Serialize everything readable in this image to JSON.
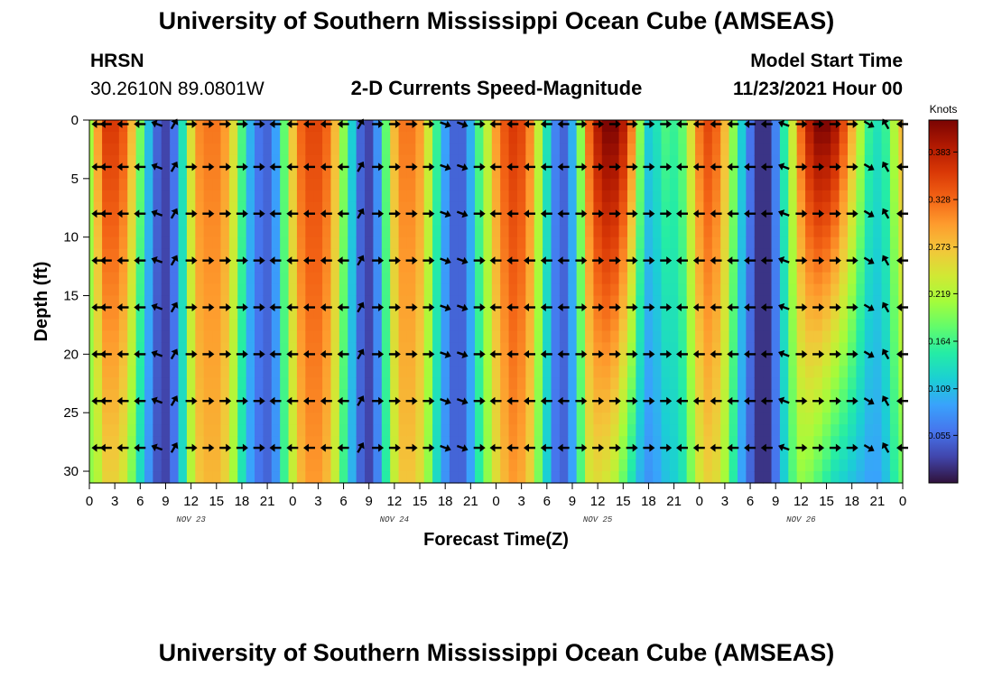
{
  "header": {
    "title": "University of Southern Mississippi Ocean Cube (AMSEAS)",
    "station": "HRSN",
    "coords": "30.2610N  89.0801W",
    "subtitle": "2-D Currents Speed-Magnitude",
    "model_label": "Model Start Time",
    "model_date": "11/23/2021 Hour 00"
  },
  "footer": {
    "title": "University of Southern Mississippi Ocean Cube (AMSEAS)"
  },
  "chart_data": {
    "type": "heatmap",
    "title": "2-D Currents Speed-Magnitude",
    "xlabel": "Forecast Time(Z)",
    "ylabel": "Depth (ft)",
    "xlim": [
      0,
      96
    ],
    "ylim": [
      31,
      0
    ],
    "x_ticks": [
      "0",
      "3",
      "6",
      "9",
      "12",
      "15",
      "18",
      "21",
      "0",
      "3",
      "6",
      "9",
      "12",
      "15",
      "18",
      "21",
      "0",
      "3",
      "6",
      "9",
      "12",
      "15",
      "18",
      "21",
      "0",
      "3",
      "6",
      "9",
      "12",
      "15",
      "18",
      "21",
      "0"
    ],
    "y_ticks": [
      0,
      5,
      10,
      15,
      20,
      25,
      30
    ],
    "day_labels": [
      {
        "label": "NOV 23",
        "hour": 12
      },
      {
        "label": "NOV 24",
        "hour": 36
      },
      {
        "label": "NOV 25",
        "hour": 60
      },
      {
        "label": "NOV 26",
        "hour": 84
      }
    ],
    "colorbar": {
      "unit": "Knots",
      "ticks": [
        0.055,
        0.109,
        0.164,
        0.219,
        0.273,
        0.328,
        0.383
      ],
      "range": [
        0.0,
        0.42
      ],
      "colors": [
        "#30123b",
        "#4145ab",
        "#4675ed",
        "#39a2fc",
        "#1bcfd4",
        "#24eca6",
        "#61fc6c",
        "#a4fc3b",
        "#d1e834",
        "#f3c63a",
        "#fe9b2d",
        "#f36315",
        "#d93806",
        "#b11901",
        "#7a0403"
      ]
    },
    "speed_profile": {
      "hours": [
        0,
        1,
        2,
        3,
        4,
        5,
        6,
        7,
        8,
        9,
        10,
        11,
        12,
        13,
        14,
        15,
        16,
        17,
        18,
        19,
        20,
        21,
        22,
        23,
        24,
        25,
        26,
        27,
        28,
        29,
        30,
        31,
        32,
        33,
        34,
        35,
        36,
        37,
        38,
        39,
        40,
        41,
        42,
        43,
        44,
        45,
        46,
        47,
        48,
        49,
        50,
        51,
        52,
        53,
        54,
        55,
        56,
        57,
        58,
        59,
        60,
        61,
        62,
        63,
        64,
        65,
        66,
        67,
        68,
        69,
        70,
        71,
        72,
        73,
        74,
        75,
        76,
        77,
        78,
        79,
        80,
        81,
        82,
        83,
        84,
        85,
        86,
        87,
        88,
        89,
        90,
        91,
        92,
        93,
        94,
        95,
        96
      ],
      "surface_knots": [
        0.21,
        0.3,
        0.36,
        0.36,
        0.34,
        0.28,
        0.19,
        0.11,
        0.05,
        0.03,
        0.06,
        0.14,
        0.25,
        0.31,
        0.32,
        0.32,
        0.3,
        0.25,
        0.17,
        0.1,
        0.06,
        0.05,
        0.09,
        0.18,
        0.27,
        0.33,
        0.35,
        0.35,
        0.33,
        0.28,
        0.2,
        0.12,
        0.05,
        0.03,
        0.08,
        0.18,
        0.28,
        0.32,
        0.32,
        0.3,
        0.24,
        0.16,
        0.09,
        0.05,
        0.05,
        0.1,
        0.17,
        0.23,
        0.3,
        0.34,
        0.36,
        0.35,
        0.31,
        0.23,
        0.14,
        0.07,
        0.05,
        0.1,
        0.2,
        0.33,
        0.39,
        0.42,
        0.42,
        0.39,
        0.32,
        0.2,
        0.12,
        0.14,
        0.17,
        0.16,
        0.18,
        0.25,
        0.32,
        0.35,
        0.33,
        0.28,
        0.2,
        0.12,
        0.06,
        0.02,
        0.02,
        0.07,
        0.15,
        0.24,
        0.33,
        0.39,
        0.42,
        0.42,
        0.4,
        0.35,
        0.29,
        0.22,
        0.16,
        0.14,
        0.16,
        0.22,
        0.28
      ],
      "bottom_knots": [
        0.2,
        0.22,
        0.26,
        0.26,
        0.24,
        0.19,
        0.13,
        0.08,
        0.04,
        0.03,
        0.06,
        0.13,
        0.22,
        0.27,
        0.28,
        0.28,
        0.26,
        0.21,
        0.14,
        0.09,
        0.06,
        0.05,
        0.08,
        0.16,
        0.23,
        0.28,
        0.3,
        0.3,
        0.28,
        0.23,
        0.16,
        0.1,
        0.05,
        0.03,
        0.07,
        0.15,
        0.23,
        0.27,
        0.27,
        0.25,
        0.2,
        0.13,
        0.08,
        0.05,
        0.05,
        0.09,
        0.15,
        0.2,
        0.25,
        0.28,
        0.3,
        0.29,
        0.26,
        0.19,
        0.12,
        0.06,
        0.05,
        0.09,
        0.17,
        0.24,
        0.25,
        0.24,
        0.22,
        0.18,
        0.14,
        0.1,
        0.08,
        0.09,
        0.11,
        0.12,
        0.14,
        0.19,
        0.24,
        0.26,
        0.25,
        0.21,
        0.15,
        0.09,
        0.05,
        0.02,
        0.02,
        0.06,
        0.12,
        0.17,
        0.2,
        0.19,
        0.17,
        0.15,
        0.13,
        0.12,
        0.11,
        0.1,
        0.09,
        0.09,
        0.11,
        0.15,
        0.18
      ]
    },
    "arrows": {
      "hours": [
        1,
        2,
        4,
        6,
        8,
        10,
        12,
        14,
        16,
        18,
        20,
        22,
        24,
        26,
        28,
        30,
        32,
        34,
        36,
        38,
        40,
        42,
        44,
        46,
        48,
        50,
        52,
        54,
        56,
        58,
        60,
        62,
        64,
        66,
        68,
        70,
        72,
        74,
        76,
        78,
        80,
        82,
        84,
        86,
        88,
        90,
        92,
        94,
        96
      ],
      "depths_ft": [
        0,
        4,
        8,
        12,
        16,
        20,
        24,
        28
      ],
      "direction_deg": [
        180,
        180,
        180,
        180,
        200,
        300,
        0,
        0,
        0,
        0,
        0,
        180,
        180,
        180,
        180,
        180,
        300,
        0,
        0,
        0,
        0,
        20,
        20,
        0,
        180,
        180,
        180,
        180,
        180,
        0,
        0,
        0,
        0,
        0,
        0,
        180,
        180,
        180,
        180,
        180,
        180,
        200,
        0,
        0,
        0,
        0,
        30,
        240,
        180
      ]
    }
  }
}
